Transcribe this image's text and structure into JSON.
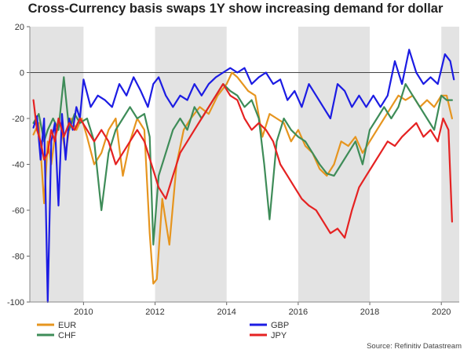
{
  "chart_data": {
    "type": "line",
    "title": "Cross-Currency basis swaps 1Y show increasing demand for dollar",
    "xlabel": "",
    "ylabel": "",
    "xlim": [
      2008.5,
      2020.5
    ],
    "ylim": [
      -100,
      20
    ],
    "xticks": [
      2010,
      2012,
      2014,
      2016,
      2018,
      2020
    ],
    "yticks": [
      20,
      0,
      -20,
      -40,
      -60,
      -80,
      -100
    ],
    "zero_line": true,
    "shaded_years": [
      [
        2008.5,
        2010
      ],
      [
        2012,
        2014
      ],
      [
        2016,
        2018
      ],
      [
        2020,
        2020.5
      ]
    ],
    "legend_position": "bottom",
    "source": "Source: Refinitiv Datastream",
    "series": [
      {
        "name": "EUR",
        "color": "#E6951F",
        "x": [
          2008.6,
          2008.75,
          2008.9,
          2009.0,
          2009.1,
          2009.2,
          2009.35,
          2009.5,
          2009.65,
          2009.8,
          2009.95,
          2010.1,
          2010.3,
          2010.5,
          2010.7,
          2010.9,
          2011.1,
          2011.3,
          2011.5,
          2011.7,
          2011.85,
          2011.95,
          2012.05,
          2012.2,
          2012.4,
          2012.6,
          2012.8,
          2013.0,
          2013.25,
          2013.5,
          2013.75,
          2014.0,
          2014.15,
          2014.3,
          2014.45,
          2014.6,
          2014.8,
          2015.0,
          2015.2,
          2015.4,
          2015.6,
          2015.8,
          2016.0,
          2016.2,
          2016.4,
          2016.6,
          2016.8,
          2017.0,
          2017.2,
          2017.4,
          2017.6,
          2017.8,
          2018.0,
          2018.2,
          2018.4,
          2018.6,
          2018.8,
          2019.0,
          2019.2,
          2019.4,
          2019.6,
          2019.8,
          2020.0,
          2020.15,
          2020.3
        ],
        "values": [
          -27,
          -22,
          -57,
          -30,
          -40,
          -28,
          -22,
          -35,
          -20,
          -25,
          -20,
          -28,
          -40,
          -35,
          -25,
          -20,
          -45,
          -30,
          -20,
          -25,
          -70,
          -92,
          -90,
          -55,
          -75,
          -40,
          -25,
          -20,
          -15,
          -18,
          -10,
          -5,
          0,
          -2,
          -5,
          -8,
          -10,
          -28,
          -18,
          -20,
          -22,
          -30,
          -25,
          -32,
          -35,
          -42,
          -45,
          -40,
          -30,
          -32,
          -28,
          -35,
          -30,
          -25,
          -20,
          -15,
          -10,
          -12,
          -10,
          -15,
          -12,
          -15,
          -10,
          -10,
          -20
        ]
      },
      {
        "name": "CHF",
        "color": "#3E8C58",
        "x": [
          2008.6,
          2008.75,
          2008.9,
          2009.0,
          2009.15,
          2009.3,
          2009.45,
          2009.6,
          2009.75,
          2009.9,
          2010.1,
          2010.3,
          2010.5,
          2010.7,
          2010.9,
          2011.1,
          2011.3,
          2011.5,
          2011.7,
          2011.85,
          2011.95,
          2012.1,
          2012.3,
          2012.5,
          2012.7,
          2012.9,
          2013.1,
          2013.3,
          2013.5,
          2013.7,
          2013.9,
          2014.1,
          2014.3,
          2014.5,
          2014.7,
          2014.9,
          2015.05,
          2015.2,
          2015.4,
          2015.6,
          2015.8,
          2016.0,
          2016.2,
          2016.4,
          2016.6,
          2016.8,
          2017.0,
          2017.2,
          2017.4,
          2017.6,
          2017.8,
          2018.0,
          2018.2,
          2018.4,
          2018.6,
          2018.8,
          2019.0,
          2019.2,
          2019.4,
          2019.6,
          2019.8,
          2020.0,
          2020.15,
          2020.3
        ],
        "values": [
          -22,
          -18,
          -30,
          -25,
          -20,
          -25,
          -2,
          -25,
          -18,
          -22,
          -20,
          -30,
          -60,
          -35,
          -25,
          -20,
          -15,
          -20,
          -18,
          -28,
          -75,
          -45,
          -35,
          -25,
          -20,
          -25,
          -15,
          -20,
          -15,
          -10,
          -5,
          -8,
          -10,
          -15,
          -12,
          -20,
          -40,
          -64,
          -30,
          -20,
          -25,
          -28,
          -30,
          -35,
          -40,
          -44,
          -45,
          -40,
          -35,
          -30,
          -40,
          -25,
          -20,
          -15,
          -20,
          -15,
          -5,
          -10,
          -15,
          -20,
          -25,
          -10,
          -12,
          -12
        ]
      },
      {
        "name": "GBP",
        "color": "#1C1CE3",
        "x": [
          2008.6,
          2008.7,
          2008.8,
          2008.9,
          2009.0,
          2009.1,
          2009.2,
          2009.3,
          2009.4,
          2009.5,
          2009.6,
          2009.7,
          2009.8,
          2009.9,
          2010.0,
          2010.2,
          2010.4,
          2010.6,
          2010.8,
          2011.0,
          2011.2,
          2011.4,
          2011.6,
          2011.8,
          2011.95,
          2012.1,
          2012.3,
          2012.5,
          2012.7,
          2012.9,
          2013.1,
          2013.3,
          2013.5,
          2013.7,
          2013.9,
          2014.1,
          2014.3,
          2014.5,
          2014.7,
          2014.9,
          2015.1,
          2015.3,
          2015.5,
          2015.7,
          2015.9,
          2016.1,
          2016.3,
          2016.5,
          2016.7,
          2016.9,
          2017.1,
          2017.3,
          2017.5,
          2017.7,
          2017.9,
          2018.1,
          2018.3,
          2018.5,
          2018.7,
          2018.9,
          2019.1,
          2019.3,
          2019.5,
          2019.7,
          2019.9,
          2020.1,
          2020.25,
          2020.35
        ],
        "values": [
          -24,
          -19,
          -38,
          -20,
          -100,
          -30,
          -22,
          -58,
          -18,
          -38,
          -20,
          -25,
          -15,
          -20,
          -3,
          -15,
          -10,
          -12,
          -15,
          -5,
          -10,
          -2,
          -8,
          -15,
          -5,
          -2,
          -10,
          -15,
          -10,
          -12,
          -5,
          -10,
          -5,
          -2,
          0,
          2,
          0,
          2,
          -5,
          -2,
          0,
          -5,
          -3,
          -12,
          -8,
          -15,
          -5,
          -10,
          -15,
          -20,
          -5,
          -8,
          -15,
          -10,
          -15,
          -10,
          -15,
          -10,
          5,
          -5,
          10,
          0,
          -5,
          -2,
          -5,
          8,
          5,
          -3
        ]
      },
      {
        "name": "JPY",
        "color": "#E52222",
        "x": [
          2008.6,
          2008.7,
          2008.8,
          2008.9,
          2009.0,
          2009.1,
          2009.2,
          2009.3,
          2009.45,
          2009.6,
          2009.75,
          2009.9,
          2010.1,
          2010.3,
          2010.5,
          2010.7,
          2010.9,
          2011.1,
          2011.3,
          2011.5,
          2011.7,
          2011.9,
          2012.1,
          2012.3,
          2012.5,
          2012.7,
          2012.9,
          2013.1,
          2013.3,
          2013.5,
          2013.7,
          2013.9,
          2014.1,
          2014.3,
          2014.5,
          2014.7,
          2014.9,
          2015.1,
          2015.3,
          2015.5,
          2015.7,
          2015.9,
          2016.1,
          2016.3,
          2016.5,
          2016.7,
          2016.9,
          2017.1,
          2017.3,
          2017.5,
          2017.7,
          2017.9,
          2018.1,
          2018.3,
          2018.5,
          2018.7,
          2018.9,
          2019.1,
          2019.3,
          2019.5,
          2019.7,
          2019.9,
          2020.05,
          2020.2,
          2020.3
        ],
        "values": [
          -12,
          -25,
          -30,
          -38,
          -35,
          -25,
          -30,
          -20,
          -28,
          -22,
          -25,
          -20,
          -25,
          -30,
          -25,
          -30,
          -40,
          -35,
          -30,
          -25,
          -30,
          -40,
          -50,
          -55,
          -45,
          -35,
          -30,
          -25,
          -20,
          -15,
          -10,
          -5,
          -10,
          -12,
          -20,
          -25,
          -22,
          -25,
          -30,
          -40,
          -45,
          -50,
          -55,
          -58,
          -60,
          -65,
          -70,
          -68,
          -72,
          -60,
          -50,
          -45,
          -40,
          -35,
          -30,
          -32,
          -28,
          -25,
          -22,
          -28,
          -25,
          -30,
          -20,
          -25,
          -65
        ]
      }
    ]
  }
}
